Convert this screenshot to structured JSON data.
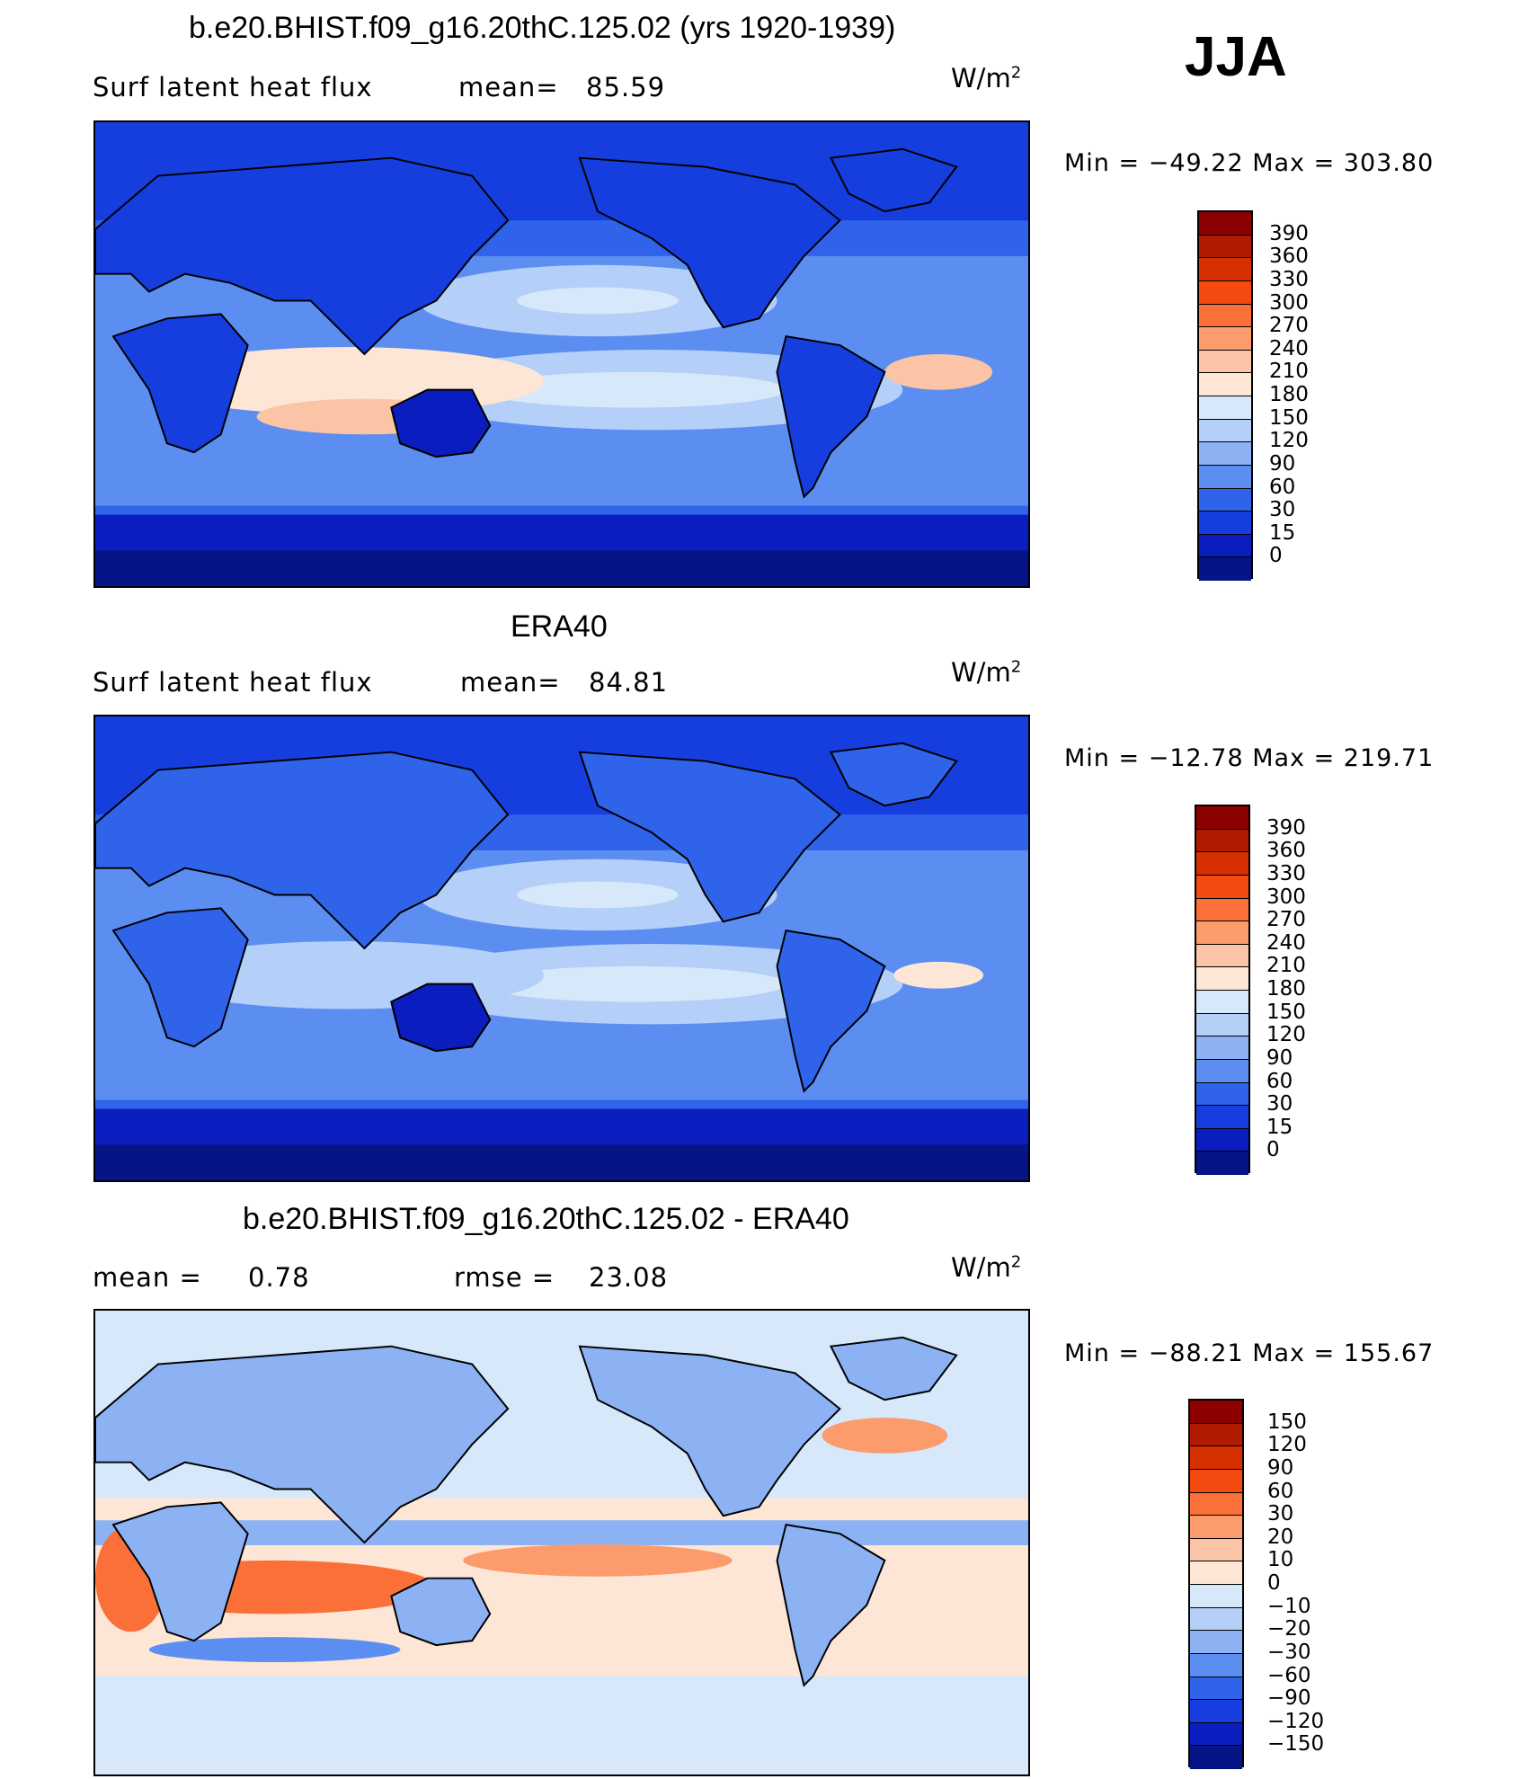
{
  "season": "JJA",
  "panels": [
    {
      "title": "b.e20.BHIST.f09_g16.20thC.125.02 (yrs 1920-1939)",
      "left_label": "Surf latent heat flux",
      "stat_label": "mean=",
      "stat_value": "85.59",
      "stat2_label": "",
      "stat2_value": "",
      "units": "W/m",
      "units_sup": "2",
      "minmax": "Min = −49.22 Max = 303.80",
      "palette": "abs",
      "levels": [
        "390",
        "360",
        "330",
        "300",
        "270",
        "240",
        "210",
        "180",
        "150",
        "120",
        "90",
        "60",
        "30",
        "15",
        "0"
      ]
    },
    {
      "title": "ERA40",
      "left_label": "Surf latent heat flux",
      "stat_label": "mean=",
      "stat_value": "84.81",
      "stat2_label": "",
      "stat2_value": "",
      "units": "W/m",
      "units_sup": "2",
      "minmax": "Min = −12.78 Max = 219.71",
      "palette": "abs",
      "levels": [
        "390",
        "360",
        "330",
        "300",
        "270",
        "240",
        "210",
        "180",
        "150",
        "120",
        "90",
        "60",
        "30",
        "15",
        "0"
      ]
    },
    {
      "title": "b.e20.BHIST.f09_g16.20thC.125.02 - ERA40",
      "left_label": "mean =",
      "stat_label": "",
      "stat_value": "0.78",
      "stat2_label": "rmse =",
      "stat2_value": "23.08",
      "units": "W/m",
      "units_sup": "2",
      "minmax": "Min = −88.21 Max = 155.67",
      "palette": "diff",
      "levels": [
        "150",
        "120",
        "90",
        "60",
        "30",
        "20",
        "10",
        "0",
        "−10",
        "−20",
        "−30",
        "−60",
        "−90",
        "−120",
        "−150"
      ]
    }
  ],
  "colors": {
    "abs": [
      "#8c0000",
      "#b01a00",
      "#d63000",
      "#f24a0f",
      "#fa7038",
      "#fc9c6c",
      "#fcc4a6",
      "#fde6d6",
      "#d6e8fa",
      "#b4cff8",
      "#8cb2f4",
      "#5b8ef0",
      "#2f63ea",
      "#163ede",
      "#0a1ec0",
      "#061486"
    ],
    "diff": [
      "#8c0000",
      "#b01a00",
      "#d63000",
      "#f24a0f",
      "#fa7038",
      "#fc9c6c",
      "#fcc4a6",
      "#fde6d6",
      "#d6e8fa",
      "#b4cff8",
      "#8cb2f4",
      "#5b8ef0",
      "#2f63ea",
      "#163ede",
      "#0a1ec0",
      "#061486"
    ]
  }
}
